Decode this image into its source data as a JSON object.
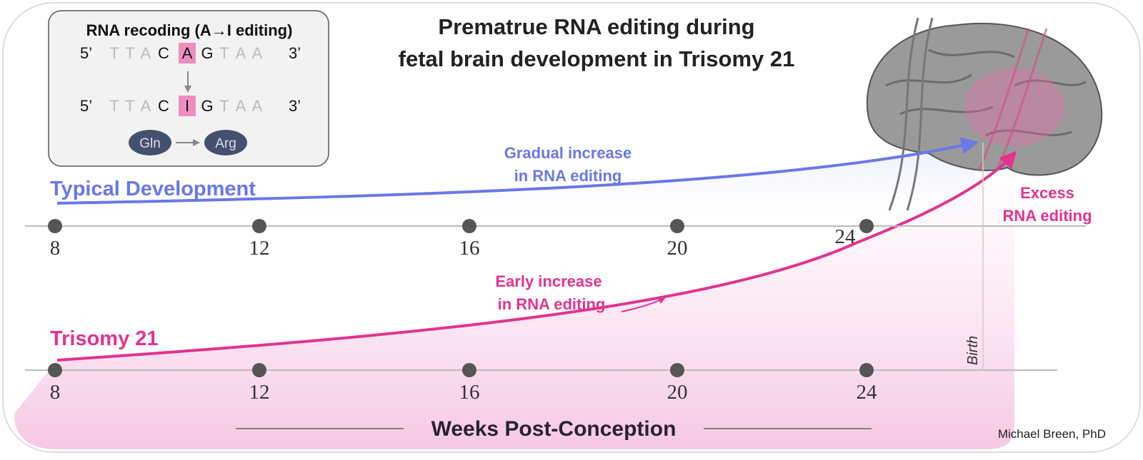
{
  "title": [
    "Prematrue RNA editing during",
    "fetal brain development in Trisomy 21"
  ],
  "inset": {
    "title": "RNA recoding (A→I editing)",
    "sequences": [
      {
        "five": "5’",
        "bases": [
          "T",
          "T",
          "A",
          "C",
          "A",
          "G",
          "T",
          "A",
          "A"
        ],
        "three": "3’"
      },
      {
        "five": "5’",
        "bases": [
          "T",
          "T",
          "A",
          "C",
          "I",
          "G",
          "T",
          "A",
          "A"
        ],
        "three": "3’"
      }
    ],
    "amino_from": "Gln",
    "amino_to": "Arg"
  },
  "typical": {
    "label": "Typical Development",
    "annotation": [
      "Gradual increase",
      "in RNA editing"
    ]
  },
  "trisomy": {
    "label": "Trisomy 21",
    "annotation": [
      "Early increase",
      "in RNA editing"
    ],
    "excess": [
      "Excess",
      "RNA editing"
    ]
  },
  "timeline_top": {
    "ticks": [
      "8",
      "12",
      "16",
      "20",
      "24"
    ]
  },
  "timeline_bottom": {
    "ticks": [
      "8",
      "12",
      "16",
      "20",
      "24"
    ]
  },
  "birth": "Birth",
  "axis_label": "Weeks Post-Conception",
  "credit": "Michael Breen, PhD"
}
